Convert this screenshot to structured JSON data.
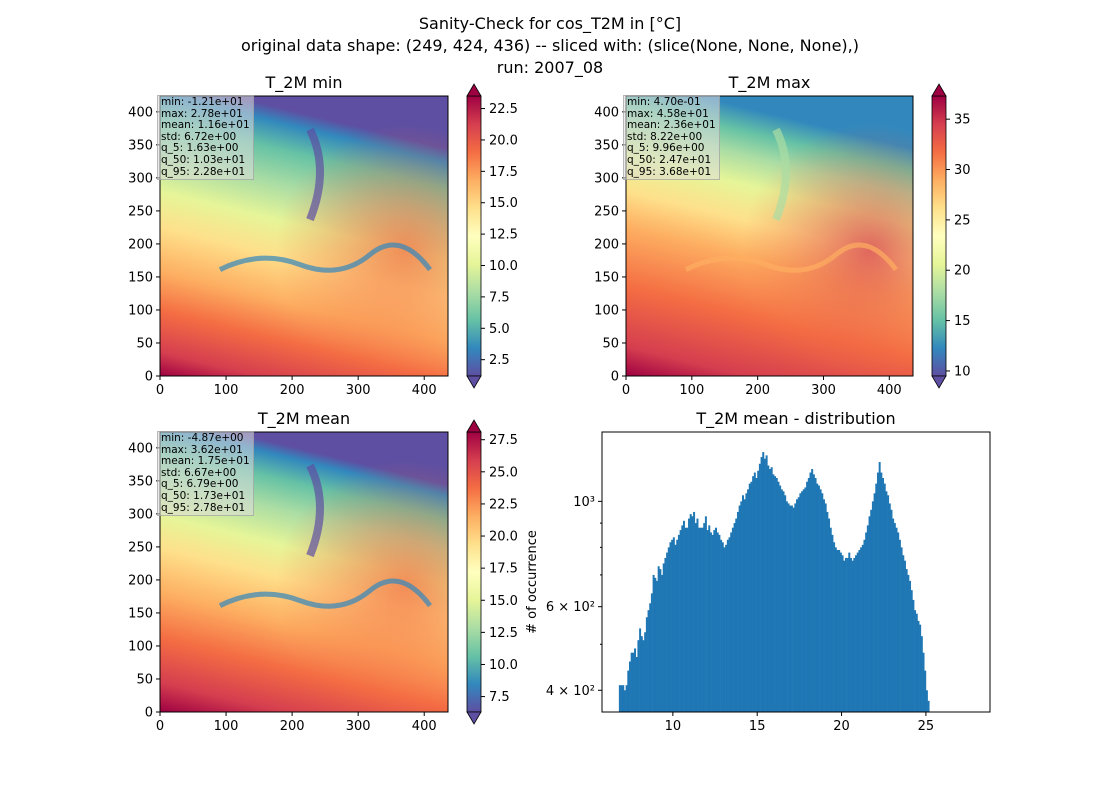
{
  "figure": {
    "title_lines": [
      "Sanity-Check for cos_T2M in [°C]",
      "original data shape: (249, 424, 436) -- sliced with: (slice(None, None, None),)",
      "run: 2007_08"
    ]
  },
  "chart_data": [
    {
      "type": "heatmap",
      "title": "T_2M min",
      "colormap": "Spectral_r",
      "xlim": [
        0,
        436
      ],
      "ylim": [
        0,
        424
      ],
      "xticks": [
        0,
        100,
        200,
        300,
        400
      ],
      "yticks": [
        0,
        50,
        100,
        150,
        200,
        250,
        300,
        350,
        400
      ],
      "colorbar": {
        "range": [
          1.2,
          23.5
        ],
        "ticks": [
          2.5,
          5.0,
          7.5,
          10.0,
          12.5,
          15.0,
          17.5,
          20.0,
          22.5
        ],
        "tick_labels": [
          "2.5",
          "5.0",
          "7.5",
          "10.0",
          "12.5",
          "15.0",
          "17.5",
          "20.0",
          "22.5"
        ]
      },
      "stats": [
        "min: -1.21e+01",
        "max: 2.78e+01",
        "mean: 1.16e+01",
        "std: 6.72e+00",
        "q_5: 1.63e+00",
        "q_50: 1.03e+01",
        "q_95: 2.28e+01"
      ]
    },
    {
      "type": "heatmap",
      "title": "T_2M max",
      "colormap": "Spectral_r",
      "xlim": [
        0,
        436
      ],
      "ylim": [
        0,
        424
      ],
      "xticks": [
        0,
        100,
        200,
        300,
        400
      ],
      "yticks": [
        0,
        50,
        100,
        150,
        200,
        250,
        300,
        350,
        400
      ],
      "colorbar": {
        "range": [
          9.5,
          37.3
        ],
        "ticks": [
          10,
          15,
          20,
          25,
          30,
          35
        ],
        "tick_labels": [
          "10",
          "15",
          "20",
          "25",
          "30",
          "35"
        ]
      },
      "stats": [
        "min: 4.70e-01",
        "max: 4.58e+01",
        "mean: 2.36e+01",
        "std: 8.22e+00",
        "q_5: 9.96e+00",
        "q_50: 2.47e+01",
        "q_95: 3.68e+01"
      ]
    },
    {
      "type": "heatmap",
      "title": "T_2M mean",
      "colormap": "Spectral_r",
      "xlim": [
        0,
        436
      ],
      "ylim": [
        0,
        424
      ],
      "xticks": [
        0,
        100,
        200,
        300,
        400
      ],
      "yticks": [
        0,
        50,
        100,
        150,
        200,
        250,
        300,
        350,
        400
      ],
      "colorbar": {
        "range": [
          6.3,
          28.1
        ],
        "ticks": [
          7.5,
          10.0,
          12.5,
          15.0,
          17.5,
          20.0,
          22.5,
          25.0,
          27.5
        ],
        "tick_labels": [
          "7.5",
          "10.0",
          "12.5",
          "15.0",
          "17.5",
          "20.0",
          "22.5",
          "25.0",
          "27.5"
        ]
      },
      "stats": [
        "min: -4.87e+00",
        "max: 3.62e+01",
        "mean: 1.75e+01",
        "std: 6.67e+00",
        "q_5: 6.79e+00",
        "q_50: 1.73e+01",
        "q_95: 2.78e+01"
      ]
    },
    {
      "type": "bar",
      "title": "T_2M mean - distribution",
      "ylabel": "# of occurrence",
      "xlabel": "",
      "yscale": "log",
      "xlim": [
        5.8,
        28.8
      ],
      "ylim": [
        360,
        1400
      ],
      "xticks": [
        10,
        15,
        20,
        25
      ],
      "yticks": [
        400,
        600,
        1000
      ],
      "ytick_labels": [
        "4 × 10²",
        "6 × 10²",
        "10³"
      ],
      "bar_color": "#1f77b4",
      "bin_range": [
        6.8,
        27.8
      ],
      "bin_width": 0.1,
      "values": [
        410,
        410,
        410,
        400,
        410,
        440,
        460,
        480,
        480,
        490,
        470,
        510,
        540,
        520,
        510,
        530,
        570,
        590,
        610,
        640,
        700,
        690,
        680,
        730,
        720,
        700,
        740,
        760,
        780,
        800,
        820,
        830,
        840,
        810,
        830,
        850,
        870,
        890,
        910,
        880,
        880,
        920,
        940,
        930,
        950,
        900,
        920,
        880,
        880,
        880,
        900,
        930,
        870,
        890,
        860,
        850,
        870,
        880,
        860,
        850,
        830,
        820,
        800,
        810,
        830,
        840,
        860,
        880,
        900,
        920,
        950,
        980,
        1000,
        1030,
        1010,
        1040,
        1060,
        1090,
        1100,
        1130,
        1150,
        1120,
        1160,
        1200,
        1240,
        1270,
        1230,
        1250,
        1190,
        1170,
        1180,
        1140,
        1130,
        1120,
        1100,
        1080,
        1060,
        1050,
        1030,
        1000,
        990,
        980,
        980,
        970,
        990,
        1010,
        1020,
        1040,
        1050,
        1060,
        1070,
        1100,
        1120,
        1150,
        1170,
        1140,
        1120,
        1090,
        1080,
        1060,
        1040,
        1010,
        990,
        950,
        920,
        880,
        850,
        820,
        800,
        790,
        790,
        780,
        770,
        750,
        760,
        760,
        780,
        760,
        750,
        760,
        770,
        780,
        790,
        800,
        810,
        830,
        860,
        890,
        930,
        960,
        1000,
        1040,
        1090,
        1150,
        1210,
        1150,
        1120,
        1090,
        1050,
        1030,
        990,
        960,
        920,
        900,
        880,
        860,
        830,
        800,
        770,
        750,
        720,
        700,
        680,
        650,
        620,
        590,
        580,
        560,
        550,
        520,
        480,
        440,
        400,
        380
      ]
    }
  ]
}
